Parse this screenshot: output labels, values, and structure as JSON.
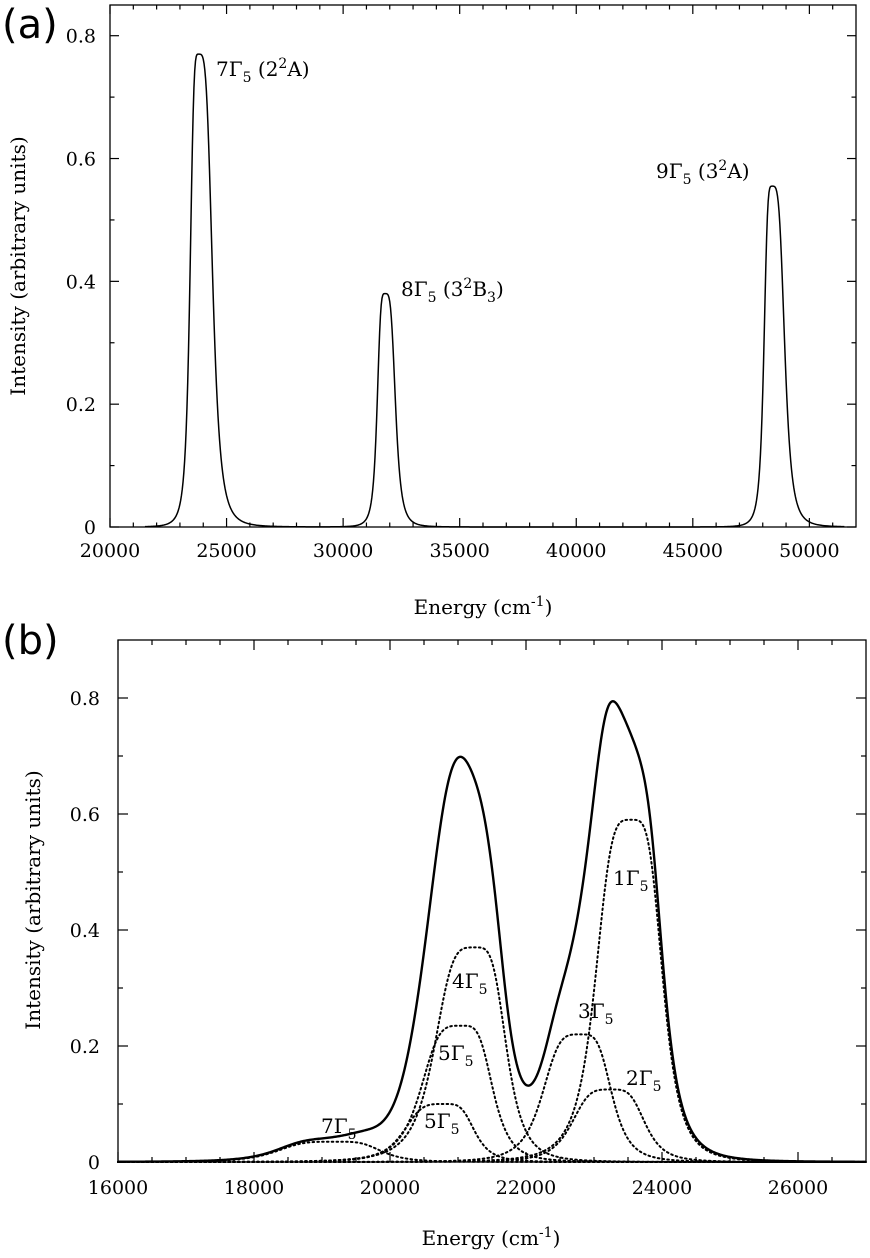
{
  "panels": [
    {
      "label": "(a)",
      "xlabel": "Energy (cm",
      "xlabel_sup": "-1",
      "xlabel_end": ")",
      "ylabel": "Intensity (arbitrary units)",
      "x_ticks": [
        "20000",
        "25000",
        "30000",
        "35000",
        "40000",
        "45000",
        "50000"
      ],
      "y_ticks": [
        "0",
        "0.2",
        "0.4",
        "0.6",
        "0.8"
      ],
      "peak_labels": [
        {
          "pre": "7Γ",
          "sub": "5",
          "mid": " (2",
          "sup": "2",
          "post": "A)",
          "sub2": "",
          "end": ""
        },
        {
          "pre": "8Γ",
          "sub": "5",
          "mid": " (3",
          "sup": "2",
          "post": "B",
          "sub2": "3",
          "end": ")"
        },
        {
          "pre": "9Γ",
          "sub": "5",
          "mid": " (3",
          "sup": "2",
          "post": "A)",
          "sub2": "",
          "end": ""
        }
      ]
    },
    {
      "label": "(b)",
      "xlabel": "Energy (cm",
      "xlabel_sup": "-1",
      "xlabel_end": ")",
      "ylabel": "Intensity (arbitrary units)",
      "x_ticks": [
        "16000",
        "18000",
        "20000",
        "22000",
        "24000",
        "26000"
      ],
      "y_ticks": [
        "0",
        "0.2",
        "0.4",
        "0.6",
        "0.8"
      ],
      "component_labels": [
        {
          "pre": "1Γ",
          "sub": "5"
        },
        {
          "pre": "2Γ",
          "sub": "5"
        },
        {
          "pre": "3Γ",
          "sub": "5"
        },
        {
          "pre": "4Γ",
          "sub": "5"
        },
        {
          "pre": "5Γ",
          "sub": "5"
        },
        {
          "pre": "5Γ",
          "sub": "5"
        },
        {
          "pre": "7Γ",
          "sub": "5"
        }
      ]
    }
  ],
  "chart_data": [
    {
      "type": "line",
      "title": "",
      "xlabel": "Energy (cm-1)",
      "ylabel": "Intensity (arbitrary units)",
      "xlim": [
        20000,
        52000
      ],
      "ylim": [
        0,
        0.85
      ],
      "x_ticks": [
        20000,
        25000,
        30000,
        35000,
        40000,
        45000,
        50000
      ],
      "y_ticks": [
        0,
        0.2,
        0.4,
        0.6,
        0.8
      ],
      "grid": false,
      "series": [
        {
          "style": "solid",
          "peaks": [
            {
              "label": "7Γ5 (2²A)",
              "center": 23800,
              "height": 0.77,
              "width_low": 380,
              "width_high": 620
            },
            {
              "label": "8Γ5 (3²B3)",
              "center": 31800,
              "height": 0.38,
              "width_low": 350,
              "width_high": 460
            },
            {
              "label": "9Γ5 (3²A)",
              "center": 48400,
              "height": 0.555,
              "width_low": 360,
              "width_high": 560
            }
          ]
        }
      ]
    },
    {
      "type": "line",
      "title": "",
      "xlabel": "Energy (cm-1)",
      "ylabel": "Intensity (arbitrary units)",
      "xlim": [
        16000,
        27000
      ],
      "ylim": [
        0,
        0.9
      ],
      "x_ticks": [
        16000,
        18000,
        20000,
        22000,
        24000,
        26000
      ],
      "y_ticks": [
        0,
        0.2,
        0.4,
        0.6,
        0.8
      ],
      "grid": false,
      "series": [
        {
          "label": "total",
          "style": "solid",
          "peaks_sum": true
        },
        {
          "label": "1Γ5",
          "style": "dotted",
          "center": 23550,
          "height": 0.59,
          "width_low": 550,
          "width_high": 480
        },
        {
          "label": "2Γ5",
          "style": "dotted",
          "center": 23250,
          "height": 0.125,
          "width_low": 600,
          "width_high": 520
        },
        {
          "label": "3Γ5",
          "style": "dotted",
          "center": 22800,
          "height": 0.22,
          "width_low": 580,
          "width_high": 480
        },
        {
          "label": "4Γ5",
          "style": "dotted",
          "center": 21250,
          "height": 0.37,
          "width_low": 620,
          "width_high": 480
        },
        {
          "label": "5Γ5",
          "style": "dotted",
          "center": 21050,
          "height": 0.235,
          "width_low": 620,
          "width_high": 480
        },
        {
          "label": "5Γ5",
          "style": "dotted",
          "center": 20800,
          "height": 0.1,
          "width_low": 620,
          "width_high": 460
        },
        {
          "label": "7Γ5",
          "style": "dotted",
          "center": 19200,
          "height": 0.035,
          "width_low": 900,
          "width_high": 700
        }
      ]
    }
  ]
}
